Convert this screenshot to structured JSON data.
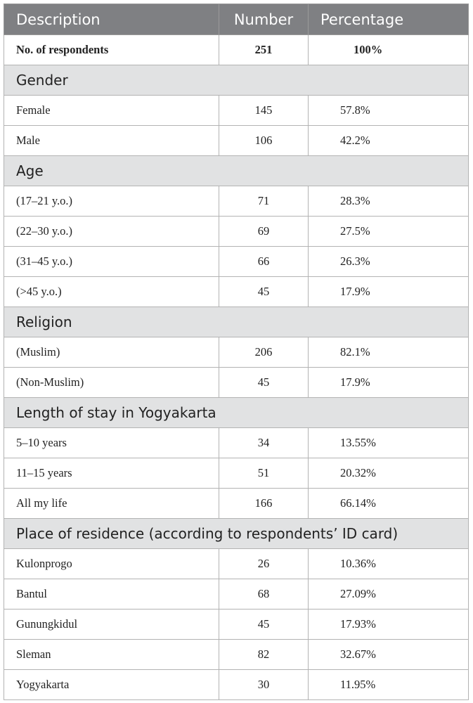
{
  "header": {
    "description": "Description",
    "number": "Number",
    "percentage": "Percentage"
  },
  "total": {
    "label": "No. of respondents",
    "number": "251",
    "percentage": "100%"
  },
  "sections": [
    {
      "title": "Gender",
      "rows": [
        {
          "d": "Female",
          "n": "145",
          "p": "57.8%"
        },
        {
          "d": "Male",
          "n": "106",
          "p": "42.2%"
        }
      ]
    },
    {
      "title": "Age",
      "rows": [
        {
          "d": "(17–21 y.o.)",
          "n": "71",
          "p": "28.3%"
        },
        {
          "d": "(22–30 y.o.)",
          "n": "69",
          "p": "27.5%"
        },
        {
          "d": "(31–45 y.o.)",
          "n": "66",
          "p": "26.3%"
        },
        {
          "d": "(>45 y.o.)",
          "n": "45",
          "p": "17.9%"
        }
      ]
    },
    {
      "title": "Religion",
      "rows": [
        {
          "d": "(Muslim)",
          "n": "206",
          "p": "82.1%"
        },
        {
          "d": "(Non-Muslim)",
          "n": "45",
          "p": "17.9%"
        }
      ]
    },
    {
      "title": "Length of stay in Yogyakarta",
      "rows": [
        {
          "d": "5–10 years",
          "n": "34",
          "p": "13.55%"
        },
        {
          "d": "11–15 years",
          "n": "51",
          "p": "20.32%"
        },
        {
          "d": "All my life",
          "n": "166",
          "p": "66.14%"
        }
      ]
    },
    {
      "title": "Place of residence (according to respondents’ ID card)",
      "rows": [
        {
          "d": "Kulonprogo",
          "n": "26",
          "p": "10.36%"
        },
        {
          "d": "Bantul",
          "n": "68",
          "p": "27.09%"
        },
        {
          "d": "Gunungkidul",
          "n": "45",
          "p": "17.93%"
        },
        {
          "d": "Sleman",
          "n": "82",
          "p": "32.67%"
        },
        {
          "d": "Yogyakarta",
          "n": "30",
          "p": "11.95%"
        }
      ]
    }
  ]
}
